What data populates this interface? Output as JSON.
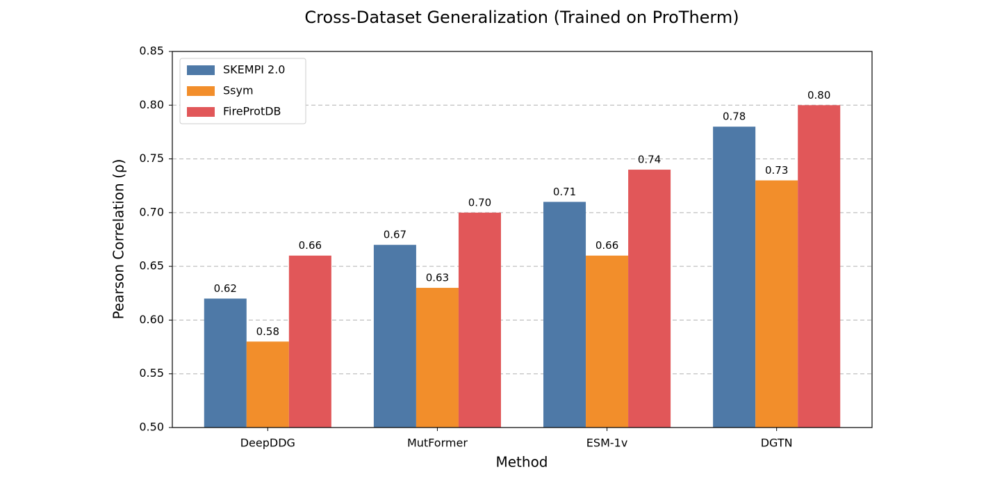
{
  "chart_data": {
    "type": "bar",
    "title": "Cross-Dataset Generalization (Trained on ProTherm)",
    "x_label": "Method",
    "y_label": "Pearson Correlation (ρ)",
    "categories": [
      "DeepDDG",
      "MutFormer",
      "ESM-1v",
      "DGTN"
    ],
    "series": [
      {
        "name": "SKEMPI 2.0",
        "color": "#4e79a7",
        "values": [
          0.62,
          0.67,
          0.71,
          0.78
        ],
        "value_labels": [
          "0.62",
          "0.67",
          "0.71",
          "0.78"
        ]
      },
      {
        "name": "Ssym",
        "color": "#f28e2b",
        "values": [
          0.58,
          0.63,
          0.66,
          0.73
        ],
        "value_labels": [
          "0.58",
          "0.63",
          "0.66",
          "0.73"
        ]
      },
      {
        "name": "FireProtDB",
        "color": "#e15759",
        "values": [
          0.66,
          0.7,
          0.74,
          0.8
        ],
        "value_labels": [
          "0.66",
          "0.70",
          "0.74",
          "0.80"
        ]
      }
    ],
    "ylim": [
      0.5,
      0.85
    ],
    "yticks": [
      {
        "value": 0.5,
        "label": "0.50"
      },
      {
        "value": 0.55,
        "label": "0.55"
      },
      {
        "value": 0.6,
        "label": "0.60"
      },
      {
        "value": 0.65,
        "label": "0.65"
      },
      {
        "value": 0.7,
        "label": "0.70"
      },
      {
        "value": 0.75,
        "label": "0.75"
      },
      {
        "value": 0.8,
        "label": "0.80"
      },
      {
        "value": 0.85,
        "label": "0.85"
      }
    ],
    "grid": true,
    "legend": "upper-left"
  }
}
